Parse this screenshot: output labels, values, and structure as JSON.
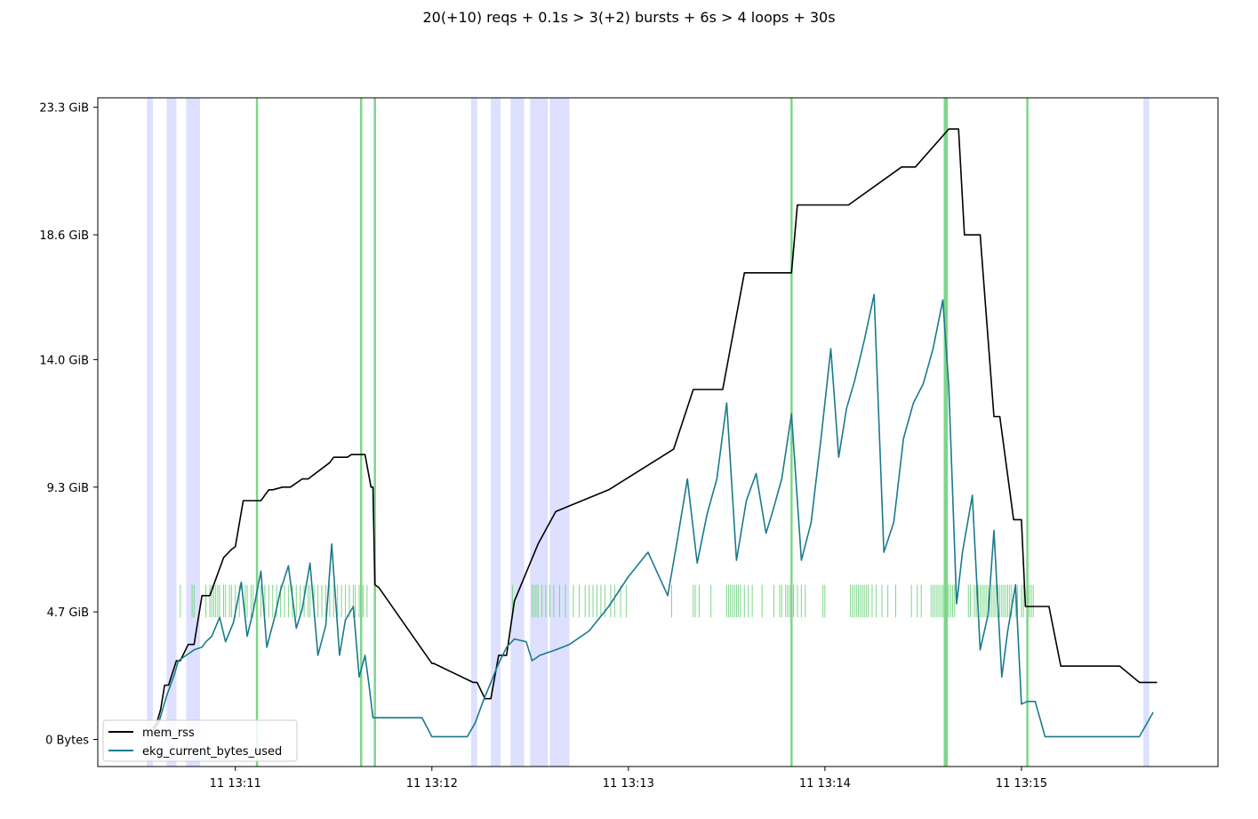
{
  "chart_data": {
    "type": "line",
    "title": "20(+10) reqs + 0.1s > 3(+2) bursts + 6s > 4 loops + 30s",
    "xlabel": "",
    "ylabel": "",
    "x_unit": "minutes since 13:10",
    "xlim": [
      0.3,
      6.0
    ],
    "ylim": [
      -1.0,
      23.65
    ],
    "x_ticks": [
      {
        "value": 1.0,
        "label": "11 13:11"
      },
      {
        "value": 2.0,
        "label": "11 13:12"
      },
      {
        "value": 3.0,
        "label": "11 13:13"
      },
      {
        "value": 4.0,
        "label": "11 13:14"
      },
      {
        "value": 5.0,
        "label": "11 13:15"
      }
    ],
    "y_ticks": [
      {
        "value": 0,
        "label": "0 Bytes"
      },
      {
        "value": 4.7,
        "label": "4.7 GiB"
      },
      {
        "value": 9.3,
        "label": "9.3 GiB"
      },
      {
        "value": 14.0,
        "label": "14.0 GiB"
      },
      {
        "value": 18.6,
        "label": "18.6 GiB"
      },
      {
        "value": 23.3,
        "label": "23.3 GiB"
      }
    ],
    "legend": {
      "position": "lower-left"
    },
    "grid": false,
    "shaded_regions": {
      "color": "#dde0ff",
      "ranges": [
        [
          0.55,
          0.58
        ],
        [
          0.65,
          0.7
        ],
        [
          0.75,
          0.82
        ],
        [
          2.2,
          2.23
        ],
        [
          2.3,
          2.35
        ],
        [
          2.4,
          2.47
        ],
        [
          2.5,
          2.59
        ],
        [
          2.6,
          2.7
        ],
        [
          5.62,
          5.65
        ]
      ]
    },
    "event_lines": {
      "color": "#7dd68a",
      "x": [
        1.11,
        1.64,
        1.71,
        3.83,
        4.61,
        4.62,
        5.03
      ]
    },
    "event_ticks": {
      "color": "#7dd68a",
      "y_range": [
        4.5,
        5.7
      ],
      "x": [
        0.72,
        0.78,
        0.79,
        0.85,
        0.87,
        0.88,
        0.89,
        0.9,
        0.91,
        0.92,
        0.94,
        0.95,
        0.97,
        0.98,
        1.0,
        1.02,
        1.05,
        1.06,
        1.08,
        1.09,
        1.11,
        1.13,
        1.15,
        1.17,
        1.19,
        1.21,
        1.23,
        1.25,
        1.27,
        1.29,
        1.31,
        1.33,
        1.35,
        1.37,
        1.38,
        1.4,
        1.42,
        1.44,
        1.46,
        1.48,
        1.5,
        1.52,
        1.54,
        1.56,
        1.58,
        1.6,
        1.61,
        1.63,
        1.65,
        1.67,
        2.41,
        2.51,
        2.52,
        2.53,
        2.54,
        2.56,
        2.58,
        2.6,
        2.62,
        2.65,
        2.68,
        2.72,
        2.75,
        2.78,
        2.8,
        2.82,
        2.84,
        2.86,
        2.88,
        2.91,
        2.93,
        2.96,
        2.99,
        3.22,
        3.33,
        3.34,
        3.36,
        3.42,
        3.5,
        3.51,
        3.52,
        3.53,
        3.54,
        3.55,
        3.56,
        3.57,
        3.59,
        3.61,
        3.63,
        3.68,
        3.74,
        3.77,
        3.78,
        3.8,
        3.81,
        3.82,
        3.84,
        3.86,
        3.88,
        3.9,
        3.99,
        4.0,
        4.13,
        4.14,
        4.15,
        4.16,
        4.17,
        4.18,
        4.19,
        4.2,
        4.21,
        4.22,
        4.24,
        4.26,
        4.29,
        4.32,
        4.36,
        4.44,
        4.47,
        4.49,
        4.54,
        4.55,
        4.56,
        4.57,
        4.58,
        4.59,
        4.6,
        4.61,
        4.62,
        4.63,
        4.64,
        4.65,
        4.66,
        4.73,
        4.74,
        4.76,
        4.77,
        4.78,
        4.79,
        4.8,
        4.81,
        4.82,
        4.83,
        4.84,
        4.85,
        4.86,
        4.87,
        4.88,
        4.89,
        4.9,
        4.91,
        4.92,
        4.93,
        4.94,
        4.95,
        4.97,
        4.98,
        5.0,
        5.01,
        5.03,
        5.04,
        5.05,
        5.06
      ]
    },
    "series": [
      {
        "name": "mem_rss",
        "color": "#000000",
        "x": [
          0.58,
          0.6,
          0.62,
          0.64,
          0.66,
          0.7,
          0.72,
          0.76,
          0.79,
          0.83,
          0.87,
          0.94,
          0.98,
          1.0,
          1.04,
          1.09,
          1.13,
          1.17,
          1.19,
          1.24,
          1.28,
          1.34,
          1.37,
          1.48,
          1.5,
          1.57,
          1.59,
          1.64,
          1.66,
          1.69,
          1.7,
          1.71,
          1.73,
          2.0,
          2.01,
          2.21,
          2.23,
          2.27,
          2.3,
          2.34,
          2.38,
          2.42,
          2.54,
          2.63,
          2.9,
          3.23,
          3.33,
          3.48,
          3.59,
          3.83,
          3.86,
          4.04,
          4.12,
          4.39,
          4.46,
          4.63,
          4.65,
          4.68,
          4.71,
          4.79,
          4.86,
          4.89,
          4.96,
          5.0,
          5.02,
          5.06,
          5.14,
          5.2,
          5.25,
          5.26,
          5.35,
          5.5,
          5.6,
          5.63,
          5.65,
          5.69
        ],
        "y": [
          0.4,
          0.6,
          1.1,
          2.0,
          2.0,
          2.9,
          2.9,
          3.5,
          3.5,
          5.3,
          5.3,
          6.7,
          7.0,
          7.1,
          8.8,
          8.8,
          8.8,
          9.2,
          9.2,
          9.3,
          9.3,
          9.6,
          9.6,
          10.2,
          10.4,
          10.4,
          10.5,
          10.5,
          10.5,
          9.3,
          9.3,
          5.7,
          5.6,
          2.8,
          2.8,
          2.1,
          2.1,
          1.5,
          1.5,
          3.1,
          3.1,
          5.1,
          7.2,
          8.4,
          9.2,
          10.7,
          12.9,
          12.9,
          17.2,
          17.2,
          19.7,
          19.7,
          19.7,
          21.1,
          21.1,
          22.5,
          22.5,
          22.5,
          18.6,
          18.6,
          11.9,
          11.9,
          8.1,
          8.1,
          4.9,
          4.9,
          4.9,
          2.7,
          2.7,
          2.7,
          2.7,
          2.7,
          2.1,
          2.1,
          2.1,
          2.1
        ]
      },
      {
        "name": "ekg_current_bytes_used",
        "color": "#1a7a8c",
        "x": [
          0.58,
          0.61,
          0.63,
          0.65,
          0.69,
          0.71,
          0.73,
          0.77,
          0.79,
          0.83,
          0.85,
          0.88,
          0.92,
          0.95,
          0.99,
          1.03,
          1.06,
          1.09,
          1.13,
          1.16,
          1.2,
          1.23,
          1.27,
          1.31,
          1.34,
          1.38,
          1.42,
          1.46,
          1.49,
          1.53,
          1.56,
          1.6,
          1.63,
          1.66,
          1.68,
          1.7,
          1.72,
          1.8,
          1.85,
          1.95,
          2.0,
          2.05,
          2.1,
          2.18,
          2.22,
          2.26,
          2.3,
          2.34,
          2.38,
          2.42,
          2.48,
          2.51,
          2.55,
          2.63,
          2.7,
          2.8,
          2.9,
          3.0,
          3.1,
          3.2,
          3.25,
          3.3,
          3.35,
          3.4,
          3.45,
          3.5,
          3.55,
          3.6,
          3.65,
          3.7,
          3.73,
          3.78,
          3.83,
          3.88,
          3.93,
          3.98,
          4.03,
          4.07,
          4.11,
          4.15,
          4.2,
          4.25,
          4.3,
          4.35,
          4.4,
          4.45,
          4.5,
          4.55,
          4.6,
          4.63,
          4.67,
          4.7,
          4.75,
          4.79,
          4.83,
          4.86,
          4.9,
          4.93,
          4.97,
          5.0,
          5.03,
          5.05,
          5.07,
          5.12,
          5.2,
          5.3,
          5.4,
          5.5,
          5.6,
          5.67
        ],
        "y": [
          0.3,
          0.6,
          1.1,
          1.6,
          2.4,
          2.9,
          3.0,
          3.2,
          3.3,
          3.4,
          3.6,
          3.8,
          4.5,
          3.6,
          4.3,
          5.8,
          3.8,
          4.7,
          6.2,
          3.4,
          4.5,
          5.5,
          6.4,
          4.1,
          4.8,
          6.5,
          3.1,
          4.2,
          7.2,
          3.1,
          4.4,
          4.9,
          2.3,
          3.1,
          2.0,
          0.8,
          0.8,
          0.8,
          0.8,
          0.8,
          0.1,
          0.1,
          0.1,
          0.1,
          0.6,
          1.4,
          2.1,
          2.8,
          3.4,
          3.7,
          3.6,
          2.9,
          3.1,
          3.3,
          3.5,
          4.0,
          4.9,
          6.0,
          6.9,
          5.3,
          7.4,
          9.6,
          6.5,
          8.3,
          9.6,
          12.4,
          6.6,
          8.8,
          9.8,
          7.6,
          8.3,
          9.6,
          12.0,
          6.6,
          8.0,
          11.1,
          14.4,
          10.4,
          12.2,
          13.2,
          14.7,
          16.4,
          6.9,
          8.0,
          11.1,
          12.4,
          13.1,
          14.4,
          16.2,
          13.0,
          5.0,
          6.9,
          9.0,
          3.3,
          4.6,
          7.7,
          2.3,
          4.0,
          5.7,
          1.3,
          1.4,
          1.4,
          1.4,
          0.1,
          0.1,
          0.1,
          0.1,
          0.1,
          0.1,
          1.0
        ]
      }
    ]
  }
}
